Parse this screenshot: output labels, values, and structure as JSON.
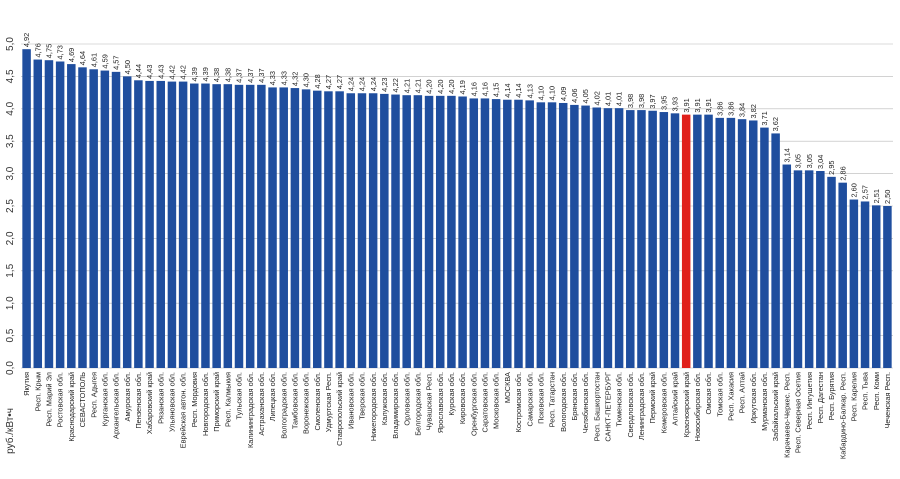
{
  "chart_data": {
    "type": "bar",
    "ylabel": "руб./кВт•ч",
    "ylim": [
      0,
      5
    ],
    "yticks": [
      "0,0",
      "0,5",
      "1,0",
      "1,5",
      "2,0",
      "2,5",
      "3,0",
      "3,5",
      "4,0",
      "4,5",
      "5,0"
    ],
    "grid": true,
    "bar_color": "#1f4e9e",
    "highlight_color": "#e0201b",
    "highlight_category": "Красноярский край",
    "categories": [
      "Якутия",
      "Респ. Крым",
      "Респ. Марий Эл",
      "Ростовская обл.",
      "Краснодарский край",
      "СЕВАСТОПОЛЬ",
      "Респ. Адыгея",
      "Курганская обл.",
      "Архангельская обл.",
      "Амурская обл.",
      "Пензенская обл.",
      "Хабаровский край",
      "Рязанская обл.",
      "Ульяновская обл.",
      "Еврейская автон. обл.",
      "Респ. Мордовия",
      "Новгородская обл.",
      "Приморский край",
      "Респ. Калмыкия",
      "Тульская обл.",
      "Калининградская обл.",
      "Астраханская обл.",
      "Липецкая обл.",
      "Волгоградская обл.",
      "Тамбовская обл.",
      "Воронежская обл.",
      "Смоленская обл.",
      "Удмуртская Респ.",
      "Ставропольский край",
      "Ивановская обл.",
      "Тверская обл.",
      "Нижегородская обл.",
      "Калужская обл.",
      "Владимирская обл.",
      "Орловская обл.",
      "Белгородская обл.",
      "Чувашская Респ.",
      "Ярославская обл.",
      "Курская обл.",
      "Кировская обл.",
      "Оренбургская обл.",
      "Саратовская обл.",
      "Московская обл.",
      "МОСКВА",
      "Костромская обл.",
      "Самарская обл.",
      "Псковская обл.",
      "Респ. Татарстан",
      "Вологодская обл.",
      "Брянская обл.",
      "Челябинская обл.",
      "Респ. Башкортостан",
      "САНКТ-ПЕТЕРБУРГ",
      "Тюменская обл.",
      "Свердловская обл.",
      "Ленинградская обл.",
      "Пермский край",
      "Кемеровская обл.",
      "Алтайский край",
      "Красноярский край",
      "Новосибирская обл.",
      "Омская обл.",
      "Томская обл.",
      "Респ. Хакасия",
      "Респ. Алтай",
      "Иркутская обл.",
      "Мурманская обл.",
      "Забайкальский край",
      "Карачаево-Черкес. Респ.",
      "Респ. Северная Осетия",
      "Респ. Ингушетия",
      "Респ. Дагестан",
      "Респ. Бурятия",
      "Кабардино-Балкар. Респ.",
      "Респ. Карелия",
      "Респ. Тыва",
      "Респ. Коми",
      "Чеченская Респ."
    ],
    "values": [
      4.92,
      4.76,
      4.75,
      4.73,
      4.69,
      4.64,
      4.61,
      4.59,
      4.57,
      4.5,
      4.44,
      4.43,
      4.43,
      4.42,
      4.42,
      4.39,
      4.39,
      4.38,
      4.38,
      4.37,
      4.37,
      4.37,
      4.33,
      4.33,
      4.32,
      4.3,
      4.28,
      4.27,
      4.27,
      4.24,
      4.24,
      4.24,
      4.23,
      4.22,
      4.21,
      4.21,
      4.2,
      4.2,
      4.2,
      4.19,
      4.16,
      4.16,
      4.15,
      4.14,
      4.14,
      4.13,
      4.1,
      4.1,
      4.09,
      4.06,
      4.05,
      4.02,
      4.01,
      4.01,
      3.98,
      3.98,
      3.97,
      3.95,
      3.93,
      3.91,
      3.91,
      3.91,
      3.86,
      3.86,
      3.84,
      3.82,
      3.71,
      3.62,
      3.14,
      3.05,
      3.05,
      3.04,
      2.95,
      2.86,
      2.6,
      2.57,
      2.51,
      2.5
    ],
    "value_labels": [
      "4,92",
      "4,76",
      "4,75",
      "4,73",
      "4,69",
      "4,64",
      "4,61",
      "4,59",
      "4,57",
      "4,50",
      "4,44",
      "4,43",
      "4,43",
      "4,42",
      "4,42",
      "4,39",
      "4,39",
      "4,38",
      "4,38",
      "4,37",
      "4,37",
      "4,37",
      "4,33",
      "4,33",
      "4,32",
      "4,30",
      "4,28",
      "4,27",
      "4,27",
      "4,24",
      "4,24",
      "4,24",
      "4,23",
      "4,22",
      "4,21",
      "4,21",
      "4,20",
      "4,20",
      "4,20",
      "4,19",
      "4,16",
      "4,16",
      "4,15",
      "4,14",
      "4,14",
      "4,13",
      "4,10",
      "4,10",
      "4,09",
      "4,06",
      "4,05",
      "4,02",
      "4,01",
      "4,01",
      "3,98",
      "3,98",
      "3,97",
      "3,95",
      "3,93",
      "3,91",
      "3,91",
      "3,91",
      "3,86",
      "3,86",
      "3,84",
      "3,82",
      "3,71",
      "3,62",
      "3,14",
      "3,05",
      "3,05",
      "3,04",
      "2,95",
      "2,86",
      "2,60",
      "2,57",
      "2,51",
      "2,50"
    ]
  }
}
